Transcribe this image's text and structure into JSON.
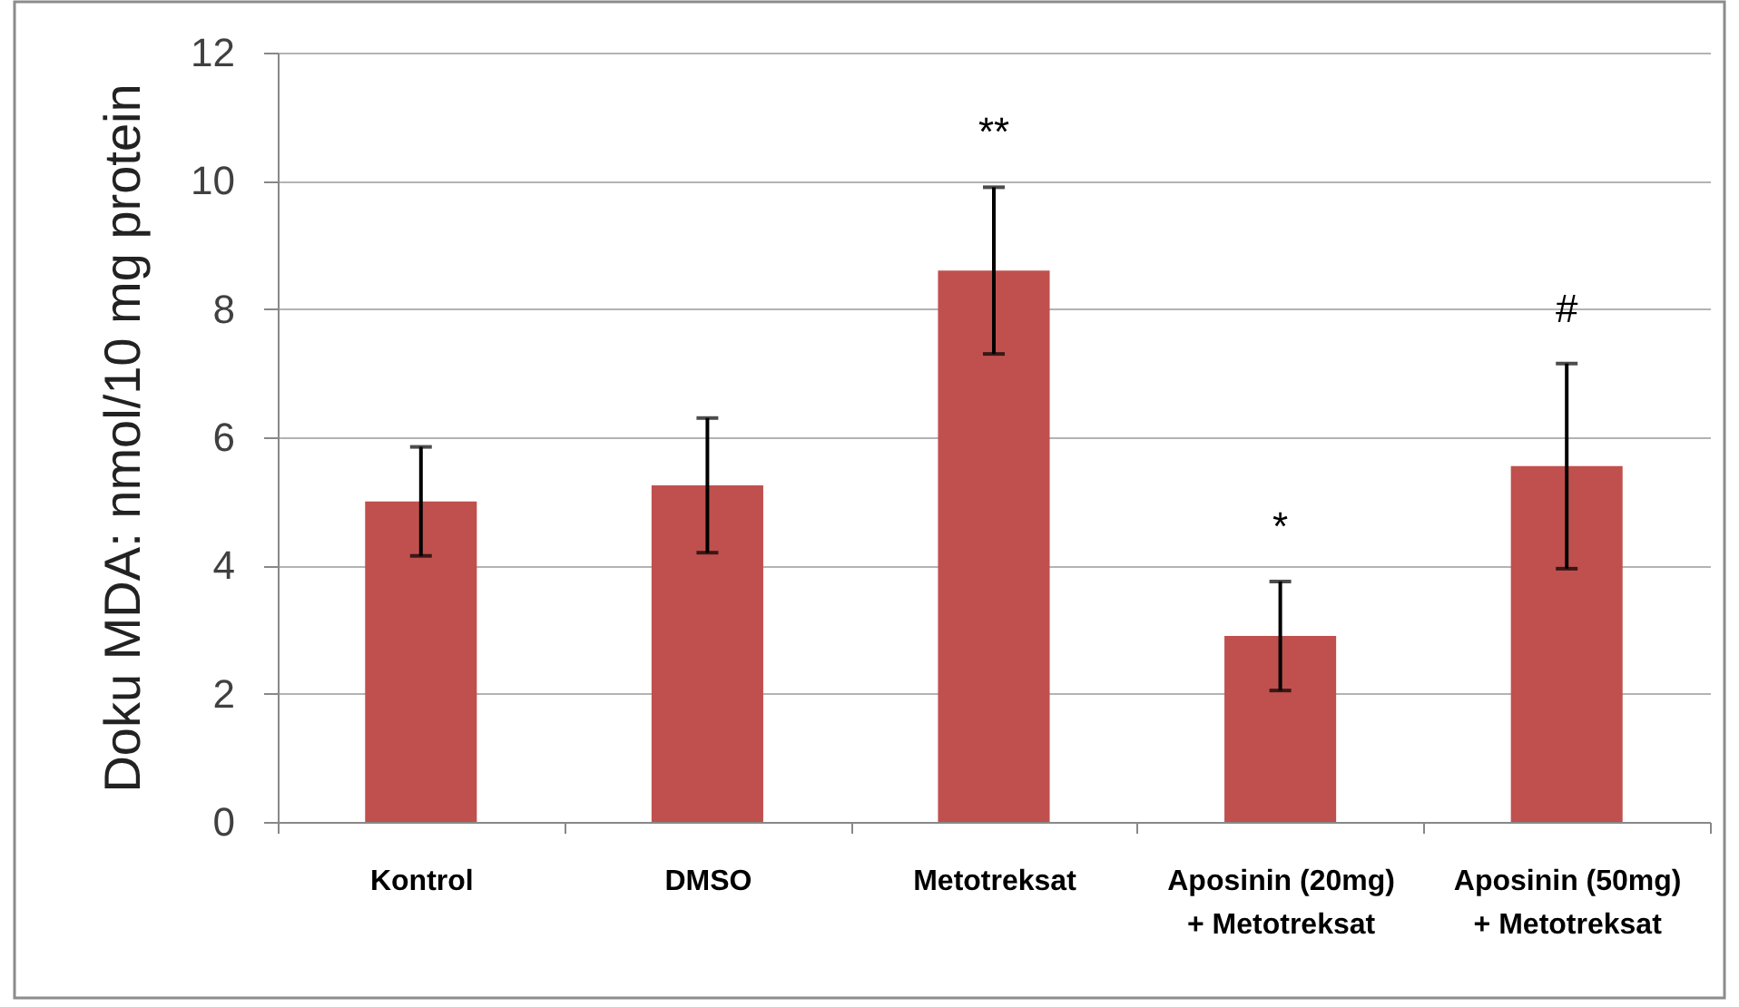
{
  "chart_data": {
    "type": "bar",
    "ylabel": "Doku MDA: nmol/10 mg protein",
    "categories": [
      "Kontrol",
      "DMSO",
      "Metotreksat",
      "Aposinin (20mg)\n+ Metotreksat",
      "Aposinin (50mg)\n+ Metotreksat"
    ],
    "values": [
      5.0,
      5.25,
      8.6,
      2.9,
      5.55
    ],
    "errors": [
      0.85,
      1.05,
      1.3,
      0.85,
      1.6
    ],
    "color": "#c0504d",
    "ylim": [
      0,
      12
    ],
    "yticks": [
      0,
      2,
      4,
      6,
      8,
      10,
      12
    ],
    "grid": "y",
    "annotations": [
      {
        "text": "**",
        "x": "Metotreksat",
        "y": 9.9
      },
      {
        "text": "*",
        "x": "Aposinin (20mg)\n+ Metotreksat",
        "y": 3.75
      },
      {
        "text": "#",
        "x": "Aposinin (50mg)\n+ Metotreksat",
        "y": 7.15
      }
    ]
  }
}
